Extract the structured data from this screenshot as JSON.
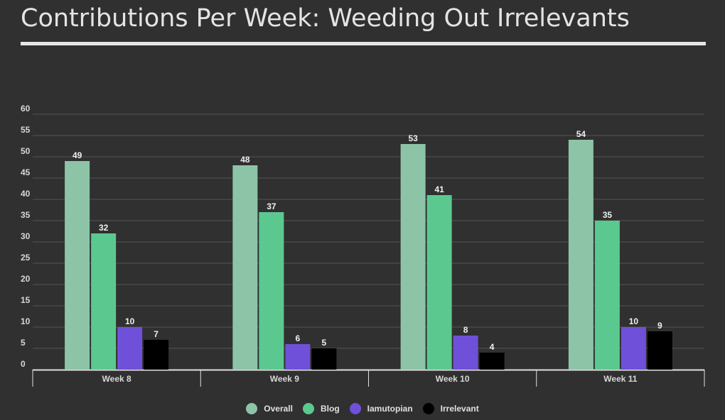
{
  "title": "Contributions Per Week: Weeding Out Irrelevants",
  "chart_data": {
    "type": "bar",
    "title": "Contributions Per Week: Weeding Out Irrelevants",
    "xlabel": "",
    "ylabel": "",
    "ylim": [
      0,
      60
    ],
    "yticks": [
      0,
      5,
      10,
      15,
      20,
      25,
      30,
      35,
      40,
      45,
      50,
      55,
      60
    ],
    "grid": true,
    "legend_position": "bottom",
    "categories": [
      "Week 8",
      "Week 9",
      "Week 10",
      "Week 11"
    ],
    "series": [
      {
        "name": "Overall",
        "color": "#8dc4a8",
        "values": [
          49,
          48,
          53,
          54
        ]
      },
      {
        "name": "Blog",
        "color": "#5bc98f",
        "values": [
          32,
          37,
          41,
          35
        ]
      },
      {
        "name": "Iamutopian",
        "color": "#6f50d9",
        "values": [
          10,
          6,
          8,
          10
        ]
      },
      {
        "name": "Irrelevant",
        "color": "#000000",
        "values": [
          7,
          5,
          4,
          9
        ]
      }
    ]
  }
}
